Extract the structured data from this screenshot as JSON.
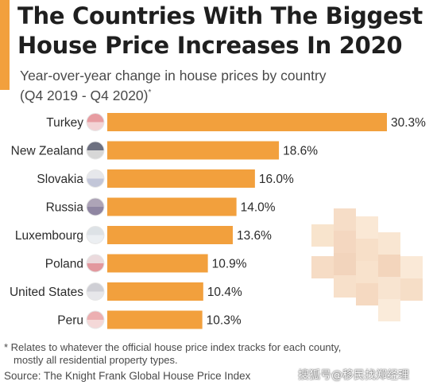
{
  "title": "The Countries With The Biggest House Price Increases In 2020",
  "subtitle": "Year-over-year change in house prices by country",
  "subtitle_period": "(Q4 2019 - Q4 2020)",
  "subtitle_marker": "*",
  "footnote_line1": "* Relates to whatever the official house price index tracks for each county,",
  "footnote_line2": "mostly all residential property types.",
  "source": "Source: The Knight Frank Global House Price Index",
  "watermark": "搜狐号@移民找郑经理",
  "colors": {
    "bar": "#F2A03D",
    "accent": "#F2A03D",
    "text": "#2b2b2b"
  },
  "chart_data": {
    "type": "bar",
    "orientation": "horizontal",
    "categories": [
      "Turkey",
      "New Zealand",
      "Slovakia",
      "Russia",
      "Luxembourg",
      "Poland",
      "United States",
      "Peru"
    ],
    "values": [
      30.3,
      18.6,
      16.0,
      14.0,
      13.6,
      10.9,
      10.4,
      10.3
    ],
    "value_labels": [
      "30.3%",
      "18.6%",
      "16.0%",
      "14.0%",
      "13.6%",
      "10.9%",
      "10.4%",
      "10.3%"
    ],
    "flag_icons": [
      "turkey-flag-icon",
      "new-zealand-flag-icon",
      "slovakia-flag-icon",
      "russia-flag-icon",
      "luxembourg-flag-icon",
      "poland-flag-icon",
      "united-states-flag-icon",
      "peru-flag-icon"
    ],
    "unit": "%",
    "xlim": [
      0,
      30.3
    ],
    "grid": false,
    "legend": "none"
  }
}
